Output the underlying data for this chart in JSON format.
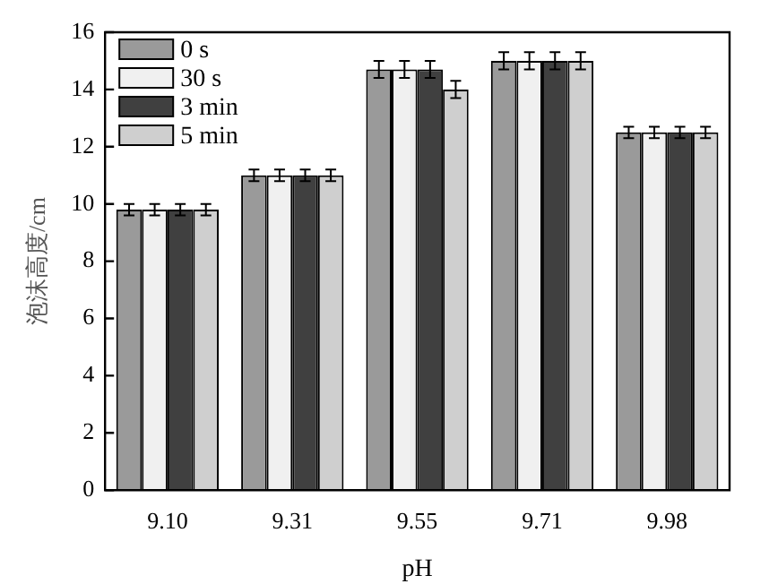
{
  "chart_data": {
    "type": "bar",
    "xlabel": "pH",
    "ylabel": "泡沫高度/cm",
    "categories": [
      "9.10",
      "9.31",
      "9.55",
      "9.71",
      "9.98"
    ],
    "series": [
      {
        "name": "0 s",
        "color": "#9a9a9a",
        "values": [
          9.8,
          11.0,
          14.7,
          15.0,
          12.5
        ],
        "errors": [
          0.2,
          0.2,
          0.3,
          0.3,
          0.2
        ]
      },
      {
        "name": "30 s",
        "color": "#f0f0f0",
        "values": [
          9.8,
          11.0,
          14.7,
          15.0,
          12.5
        ],
        "errors": [
          0.2,
          0.2,
          0.3,
          0.3,
          0.2
        ]
      },
      {
        "name": "3 min",
        "color": "#404040",
        "values": [
          9.8,
          11.0,
          14.7,
          15.0,
          12.5
        ],
        "errors": [
          0.2,
          0.2,
          0.3,
          0.3,
          0.2
        ]
      },
      {
        "name": "5 min",
        "color": "#cfcfcf",
        "values": [
          9.8,
          11.0,
          14.0,
          15.0,
          12.5
        ],
        "errors": [
          0.2,
          0.2,
          0.3,
          0.3,
          0.2
        ]
      }
    ],
    "ylim": [
      0,
      16
    ],
    "yticks": [
      0,
      2,
      4,
      6,
      8,
      10,
      12,
      14,
      16
    ],
    "grid": false,
    "legend": "top left"
  }
}
